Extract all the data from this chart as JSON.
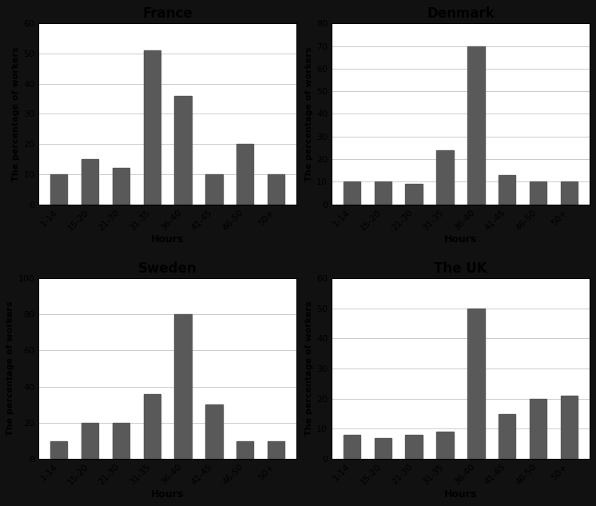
{
  "categories": [
    "1-14",
    "15-20",
    "21-30",
    "31-35",
    "36-40",
    "41-45",
    "46-50",
    "50+"
  ],
  "charts": [
    {
      "title": "France",
      "values": [
        10,
        15,
        12,
        51,
        36,
        10,
        20,
        10
      ],
      "ylim": [
        0,
        60
      ],
      "yticks": [
        0,
        10,
        20,
        30,
        40,
        50,
        60
      ]
    },
    {
      "title": "Denmark",
      "values": [
        10,
        10,
        9,
        24,
        70,
        13,
        10,
        10
      ],
      "ylim": [
        0,
        80
      ],
      "yticks": [
        0,
        10,
        20,
        30,
        40,
        50,
        60,
        70,
        80
      ]
    },
    {
      "title": "Sweden",
      "values": [
        10,
        20,
        20,
        36,
        80,
        30,
        10,
        10
      ],
      "ylim": [
        0,
        100
      ],
      "yticks": [
        0,
        20,
        40,
        60,
        80,
        100
      ]
    },
    {
      "title": "The UK",
      "values": [
        8,
        7,
        8,
        9,
        50,
        15,
        20,
        21
      ],
      "ylim": [
        0,
        60
      ],
      "yticks": [
        0,
        10,
        20,
        30,
        40,
        50,
        60
      ]
    }
  ],
  "bar_color": "#595959",
  "xlabel": "Hours",
  "ylabel": "The percentage of workers",
  "title_fontsize": 12,
  "label_fontsize": 9,
  "tick_fontsize": 8,
  "figure_bg": "#1a1a1a",
  "axes_bg": "#ffffff",
  "panel_bg": "#ffffff"
}
